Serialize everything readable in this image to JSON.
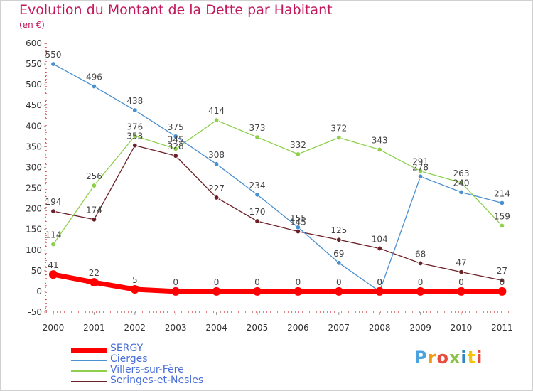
{
  "header": {
    "title": "Evolution du Montant de la Dette par Habitant",
    "unit": "(en €)"
  },
  "logo": {
    "text": "Proxiti",
    "letter_colors": [
      "#4aa3df",
      "#f39c12",
      "#e74c3c",
      "#8bc34a",
      "#2e86c1",
      "#f1c40f",
      "#e74c3c"
    ]
  },
  "chart_data": {
    "type": "line",
    "x": [
      "2000",
      "2001",
      "2002",
      "2003",
      "2004",
      "2005",
      "2006",
      "2007",
      "2008",
      "2009",
      "2010",
      "2011"
    ],
    "yticks": [
      "-50",
      "0",
      "50",
      "100",
      "150",
      "200",
      "250",
      "300",
      "350",
      "400",
      "450",
      "500",
      "550",
      "600"
    ],
    "ylim": [
      -50,
      600
    ],
    "grid": false,
    "legend_position": "bottom-left",
    "series": [
      {
        "name": "Villers-sur-Fère",
        "color": "#8ed04c",
        "width": 1.3,
        "values": [
          114,
          256,
          376,
          345,
          414,
          373,
          332,
          372,
          343,
          291,
          263,
          159
        ],
        "labels": [
          "114",
          "256",
          "376",
          "345",
          "414",
          "373",
          "332",
          "372",
          "343",
          "291",
          "263",
          "159"
        ]
      },
      {
        "name": "Seringes-et-Nesles",
        "color": "#6b1f26",
        "width": 1.3,
        "values": [
          194,
          174,
          353,
          328,
          227,
          170,
          145,
          125,
          104,
          68,
          47,
          27
        ],
        "labels": [
          "194",
          "174",
          "353",
          "328",
          "227",
          "170",
          "145",
          "125",
          "104",
          "68",
          "47",
          "27"
        ]
      },
      {
        "name": "Cierges",
        "color": "#4a8fcf",
        "width": 1.3,
        "values": [
          550,
          496,
          438,
          375,
          308,
          234,
          155,
          69,
          0,
          278,
          240,
          214
        ],
        "labels": [
          "550",
          "496",
          "438",
          "375",
          "308",
          "234",
          "155",
          "69",
          "0",
          "278",
          "240",
          "214"
        ]
      },
      {
        "name": "SERGY",
        "color": "#ff0000",
        "width": 7,
        "values": [
          41,
          22,
          5,
          0,
          0,
          0,
          0,
          0,
          0,
          0,
          0,
          0
        ],
        "labels": [
          "41",
          "22",
          "5",
          "0",
          "0",
          "0",
          "0",
          "0",
          "0",
          "0",
          "0",
          "0"
        ]
      }
    ],
    "legend": [
      {
        "name": "SERGY",
        "color": "#ff0000",
        "thickness": 7
      },
      {
        "name": "Cierges",
        "color": "#4a8fcf",
        "thickness": 2
      },
      {
        "name": "Villers-sur-Fère",
        "color": "#8ed04c",
        "thickness": 2
      },
      {
        "name": "Seringes-et-Nesles",
        "color": "#6b1f26",
        "thickness": 2
      }
    ]
  }
}
